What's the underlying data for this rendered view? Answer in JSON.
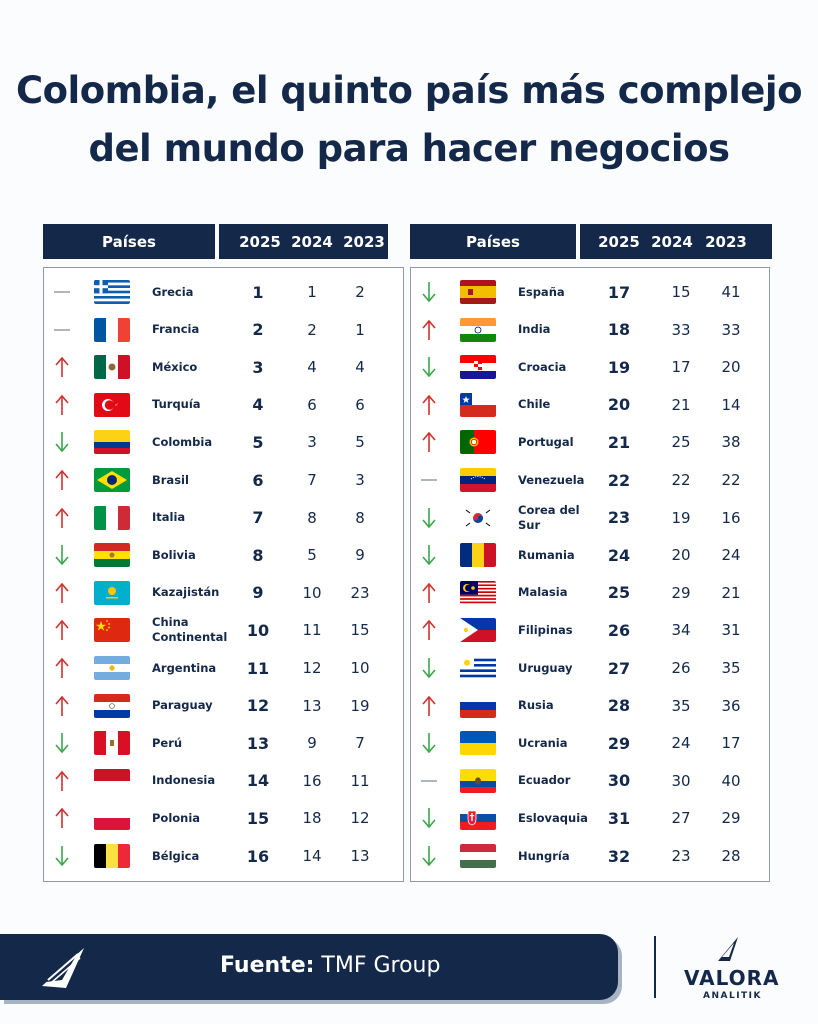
{
  "title": [
    "Colombia, el quinto país más complejo",
    "del mundo para hacer negocios"
  ],
  "headers": {
    "country": "Países",
    "y2025": "2025",
    "y2024": "2024",
    "y2023": "2023"
  },
  "colors": {
    "navy": "#14294a",
    "up": "#d0312d",
    "down": "#3aa64b",
    "same": "#9aa3ad"
  },
  "rows": [
    {
      "name": "Grecia",
      "r2025": "1",
      "r2024": "1",
      "r2023": "2",
      "trend": "same",
      "flag": "greece-flag-icon"
    },
    {
      "name": "Francia",
      "r2025": "2",
      "r2024": "2",
      "r2023": "1",
      "trend": "same",
      "flag": "france-flag-icon"
    },
    {
      "name": "México",
      "r2025": "3",
      "r2024": "4",
      "r2023": "4",
      "trend": "up",
      "flag": "mexico-flag-icon"
    },
    {
      "name": "Turquía",
      "r2025": "4",
      "r2024": "6",
      "r2023": "6",
      "trend": "up",
      "flag": "turkey-flag-icon"
    },
    {
      "name": "Colombia",
      "r2025": "5",
      "r2024": "3",
      "r2023": "5",
      "trend": "down",
      "flag": "colombia-flag-icon"
    },
    {
      "name": "Brasil",
      "r2025": "6",
      "r2024": "7",
      "r2023": "3",
      "trend": "up",
      "flag": "brazil-flag-icon"
    },
    {
      "name": "Italia",
      "r2025": "7",
      "r2024": "8",
      "r2023": "8",
      "trend": "up",
      "flag": "italy-flag-icon"
    },
    {
      "name": "Bolivia",
      "r2025": "8",
      "r2024": "5",
      "r2023": "9",
      "trend": "down",
      "flag": "bolivia-flag-icon"
    },
    {
      "name": "Kazajistán",
      "r2025": "9",
      "r2024": "10",
      "r2023": "23",
      "trend": "up",
      "flag": "kazakhstan-flag-icon"
    },
    {
      "name": "China Continental",
      "r2025": "10",
      "r2024": "11",
      "r2023": "15",
      "trend": "up",
      "flag": "china-flag-icon"
    },
    {
      "name": "Argentina",
      "r2025": "11",
      "r2024": "12",
      "r2023": "10",
      "trend": "up",
      "flag": "argentina-flag-icon"
    },
    {
      "name": "Paraguay",
      "r2025": "12",
      "r2024": "13",
      "r2023": "19",
      "trend": "up",
      "flag": "paraguay-flag-icon"
    },
    {
      "name": "Perú",
      "r2025": "13",
      "r2024": "9",
      "r2023": "7",
      "trend": "down",
      "flag": "peru-flag-icon"
    },
    {
      "name": "Indonesia",
      "r2025": "14",
      "r2024": "16",
      "r2023": "11",
      "trend": "up",
      "flag": "indonesia-flag-icon"
    },
    {
      "name": "Polonia",
      "r2025": "15",
      "r2024": "18",
      "r2023": "12",
      "trend": "up",
      "flag": "poland-flag-icon"
    },
    {
      "name": "Bélgica",
      "r2025": "16",
      "r2024": "14",
      "r2023": "13",
      "trend": "down",
      "flag": "belgium-flag-icon"
    },
    {
      "name": "España",
      "r2025": "17",
      "r2024": "15",
      "r2023": "41",
      "trend": "down",
      "flag": "spain-flag-icon"
    },
    {
      "name": "India",
      "r2025": "18",
      "r2024": "33",
      "r2023": "33",
      "trend": "up",
      "flag": "india-flag-icon"
    },
    {
      "name": "Croacia",
      "r2025": "19",
      "r2024": "17",
      "r2023": "20",
      "trend": "down",
      "flag": "croatia-flag-icon"
    },
    {
      "name": "Chile",
      "r2025": "20",
      "r2024": "21",
      "r2023": "14",
      "trend": "up",
      "flag": "chile-flag-icon"
    },
    {
      "name": "Portugal",
      "r2025": "21",
      "r2024": "25",
      "r2023": "38",
      "trend": "up",
      "flag": "portugal-flag-icon"
    },
    {
      "name": "Venezuela",
      "r2025": "22",
      "r2024": "22",
      "r2023": "22",
      "trend": "same",
      "flag": "venezuela-flag-icon"
    },
    {
      "name": "Corea del Sur",
      "r2025": "23",
      "r2024": "19",
      "r2023": "16",
      "trend": "down",
      "flag": "south-korea-flag-icon"
    },
    {
      "name": "Rumania",
      "r2025": "24",
      "r2024": "20",
      "r2023": "24",
      "trend": "down",
      "flag": "romania-flag-icon"
    },
    {
      "name": "Malasia",
      "r2025": "25",
      "r2024": "29",
      "r2023": "21",
      "trend": "up",
      "flag": "malaysia-flag-icon"
    },
    {
      "name": "Filipinas",
      "r2025": "26",
      "r2024": "34",
      "r2023": "31",
      "trend": "up",
      "flag": "philippines-flag-icon"
    },
    {
      "name": "Uruguay",
      "r2025": "27",
      "r2024": "26",
      "r2023": "35",
      "trend": "down",
      "flag": "uruguay-flag-icon"
    },
    {
      "name": "Rusia",
      "r2025": "28",
      "r2024": "35",
      "r2023": "36",
      "trend": "up",
      "flag": "russia-flag-icon"
    },
    {
      "name": "Ucrania",
      "r2025": "29",
      "r2024": "24",
      "r2023": "17",
      "trend": "down",
      "flag": "ukraine-flag-icon"
    },
    {
      "name": "Ecuador",
      "r2025": "30",
      "r2024": "30",
      "r2023": "40",
      "trend": "same",
      "flag": "ecuador-flag-icon"
    },
    {
      "name": "Eslovaquia",
      "r2025": "31",
      "r2024": "27",
      "r2023": "29",
      "trend": "down",
      "flag": "slovakia-flag-icon"
    },
    {
      "name": "Hungría",
      "r2025": "32",
      "r2024": "23",
      "r2023": "28",
      "trend": "down",
      "flag": "hungary-flag-icon"
    }
  ],
  "footer": {
    "source_label": "Fuente:",
    "source_value": "TMF Group",
    "brand": "VALORA",
    "brand_sub": "ANALITIK"
  }
}
